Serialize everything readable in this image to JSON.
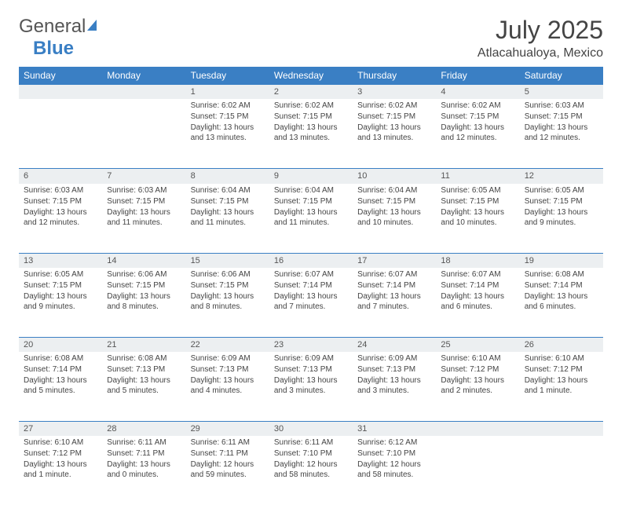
{
  "logo": {
    "text1": "General",
    "text2": "Blue"
  },
  "title": "July 2025",
  "location": "Atlacahualoya, Mexico",
  "colors": {
    "header_bg": "#3a7fc4",
    "header_fg": "#ffffff",
    "daynum_bg": "#eceff1",
    "border": "#3a7fc4",
    "text": "#444444"
  },
  "daysOfWeek": [
    "Sunday",
    "Monday",
    "Tuesday",
    "Wednesday",
    "Thursday",
    "Friday",
    "Saturday"
  ],
  "weeks": [
    [
      null,
      null,
      {
        "n": "1",
        "sr": "Sunrise: 6:02 AM",
        "ss": "Sunset: 7:15 PM",
        "dl": "Daylight: 13 hours and 13 minutes."
      },
      {
        "n": "2",
        "sr": "Sunrise: 6:02 AM",
        "ss": "Sunset: 7:15 PM",
        "dl": "Daylight: 13 hours and 13 minutes."
      },
      {
        "n": "3",
        "sr": "Sunrise: 6:02 AM",
        "ss": "Sunset: 7:15 PM",
        "dl": "Daylight: 13 hours and 13 minutes."
      },
      {
        "n": "4",
        "sr": "Sunrise: 6:02 AM",
        "ss": "Sunset: 7:15 PM",
        "dl": "Daylight: 13 hours and 12 minutes."
      },
      {
        "n": "5",
        "sr": "Sunrise: 6:03 AM",
        "ss": "Sunset: 7:15 PM",
        "dl": "Daylight: 13 hours and 12 minutes."
      }
    ],
    [
      {
        "n": "6",
        "sr": "Sunrise: 6:03 AM",
        "ss": "Sunset: 7:15 PM",
        "dl": "Daylight: 13 hours and 12 minutes."
      },
      {
        "n": "7",
        "sr": "Sunrise: 6:03 AM",
        "ss": "Sunset: 7:15 PM",
        "dl": "Daylight: 13 hours and 11 minutes."
      },
      {
        "n": "8",
        "sr": "Sunrise: 6:04 AM",
        "ss": "Sunset: 7:15 PM",
        "dl": "Daylight: 13 hours and 11 minutes."
      },
      {
        "n": "9",
        "sr": "Sunrise: 6:04 AM",
        "ss": "Sunset: 7:15 PM",
        "dl": "Daylight: 13 hours and 11 minutes."
      },
      {
        "n": "10",
        "sr": "Sunrise: 6:04 AM",
        "ss": "Sunset: 7:15 PM",
        "dl": "Daylight: 13 hours and 10 minutes."
      },
      {
        "n": "11",
        "sr": "Sunrise: 6:05 AM",
        "ss": "Sunset: 7:15 PM",
        "dl": "Daylight: 13 hours and 10 minutes."
      },
      {
        "n": "12",
        "sr": "Sunrise: 6:05 AM",
        "ss": "Sunset: 7:15 PM",
        "dl": "Daylight: 13 hours and 9 minutes."
      }
    ],
    [
      {
        "n": "13",
        "sr": "Sunrise: 6:05 AM",
        "ss": "Sunset: 7:15 PM",
        "dl": "Daylight: 13 hours and 9 minutes."
      },
      {
        "n": "14",
        "sr": "Sunrise: 6:06 AM",
        "ss": "Sunset: 7:15 PM",
        "dl": "Daylight: 13 hours and 8 minutes."
      },
      {
        "n": "15",
        "sr": "Sunrise: 6:06 AM",
        "ss": "Sunset: 7:15 PM",
        "dl": "Daylight: 13 hours and 8 minutes."
      },
      {
        "n": "16",
        "sr": "Sunrise: 6:07 AM",
        "ss": "Sunset: 7:14 PM",
        "dl": "Daylight: 13 hours and 7 minutes."
      },
      {
        "n": "17",
        "sr": "Sunrise: 6:07 AM",
        "ss": "Sunset: 7:14 PM",
        "dl": "Daylight: 13 hours and 7 minutes."
      },
      {
        "n": "18",
        "sr": "Sunrise: 6:07 AM",
        "ss": "Sunset: 7:14 PM",
        "dl": "Daylight: 13 hours and 6 minutes."
      },
      {
        "n": "19",
        "sr": "Sunrise: 6:08 AM",
        "ss": "Sunset: 7:14 PM",
        "dl": "Daylight: 13 hours and 6 minutes."
      }
    ],
    [
      {
        "n": "20",
        "sr": "Sunrise: 6:08 AM",
        "ss": "Sunset: 7:14 PM",
        "dl": "Daylight: 13 hours and 5 minutes."
      },
      {
        "n": "21",
        "sr": "Sunrise: 6:08 AM",
        "ss": "Sunset: 7:13 PM",
        "dl": "Daylight: 13 hours and 5 minutes."
      },
      {
        "n": "22",
        "sr": "Sunrise: 6:09 AM",
        "ss": "Sunset: 7:13 PM",
        "dl": "Daylight: 13 hours and 4 minutes."
      },
      {
        "n": "23",
        "sr": "Sunrise: 6:09 AM",
        "ss": "Sunset: 7:13 PM",
        "dl": "Daylight: 13 hours and 3 minutes."
      },
      {
        "n": "24",
        "sr": "Sunrise: 6:09 AM",
        "ss": "Sunset: 7:13 PM",
        "dl": "Daylight: 13 hours and 3 minutes."
      },
      {
        "n": "25",
        "sr": "Sunrise: 6:10 AM",
        "ss": "Sunset: 7:12 PM",
        "dl": "Daylight: 13 hours and 2 minutes."
      },
      {
        "n": "26",
        "sr": "Sunrise: 6:10 AM",
        "ss": "Sunset: 7:12 PM",
        "dl": "Daylight: 13 hours and 1 minute."
      }
    ],
    [
      {
        "n": "27",
        "sr": "Sunrise: 6:10 AM",
        "ss": "Sunset: 7:12 PM",
        "dl": "Daylight: 13 hours and 1 minute."
      },
      {
        "n": "28",
        "sr": "Sunrise: 6:11 AM",
        "ss": "Sunset: 7:11 PM",
        "dl": "Daylight: 13 hours and 0 minutes."
      },
      {
        "n": "29",
        "sr": "Sunrise: 6:11 AM",
        "ss": "Sunset: 7:11 PM",
        "dl": "Daylight: 12 hours and 59 minutes."
      },
      {
        "n": "30",
        "sr": "Sunrise: 6:11 AM",
        "ss": "Sunset: 7:10 PM",
        "dl": "Daylight: 12 hours and 58 minutes."
      },
      {
        "n": "31",
        "sr": "Sunrise: 6:12 AM",
        "ss": "Sunset: 7:10 PM",
        "dl": "Daylight: 12 hours and 58 minutes."
      },
      null,
      null
    ]
  ]
}
